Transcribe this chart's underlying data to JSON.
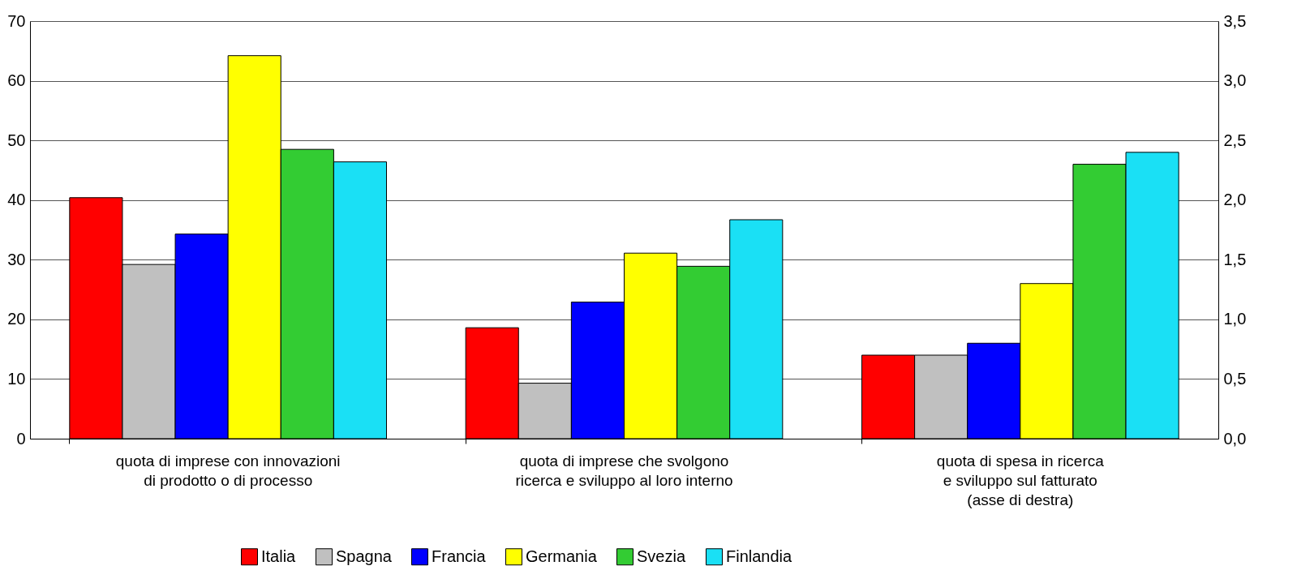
{
  "chart_data": {
    "type": "bar",
    "categories": [
      "quota di imprese con innovazioni\ndi prodotto o di processo",
      "quota di imprese che svolgono\nricerca e sviluppo al loro interno",
      "quota di spesa in ricerca\ne sviluppo sul fatturato\n(asse di destra)"
    ],
    "series": [
      {
        "name": "Italia",
        "color": "#ff0000",
        "values": [
          40.4,
          18.6,
          null
        ]
      },
      {
        "name": "Spagna",
        "color": "#c0c0c0",
        "values": [
          29.2,
          9.3,
          null
        ]
      },
      {
        "name": "Francia",
        "color": "#0000ff",
        "values": [
          34.3,
          22.9,
          null
        ]
      },
      {
        "name": "Germania",
        "color": "#ffff00",
        "values": [
          64.2,
          31.1,
          null
        ]
      },
      {
        "name": "Svezia",
        "color": "#33cc33",
        "values": [
          48.5,
          28.9,
          null
        ]
      },
      {
        "name": "Finlandia",
        "color": "#1ae0f5",
        "values": [
          46.4,
          36.7,
          null
        ]
      },
      {
        "axis": "y2",
        "color": "#ff0000",
        "values": [
          null,
          null,
          0.7
        ]
      },
      {
        "axis": "y2",
        "color": "#c0c0c0",
        "values": [
          null,
          null,
          0.7
        ]
      },
      {
        "axis": "y2",
        "color": "#0000ff",
        "values": [
          null,
          null,
          0.8
        ]
      },
      {
        "axis": "y2",
        "color": "#ffff00",
        "values": [
          null,
          null,
          1.3
        ]
      },
      {
        "axis": "y2",
        "color": "#33cc33",
        "values": [
          null,
          null,
          2.3
        ]
      },
      {
        "axis": "y2",
        "color": "#1ae0f5",
        "values": [
          null,
          null,
          2.4
        ]
      }
    ],
    "ylim": [
      0,
      70
    ],
    "yticks": [
      0,
      10,
      20,
      30,
      40,
      50,
      60,
      70
    ],
    "y2lim": [
      0,
      3.5
    ],
    "y2ticks": [
      {
        "value": 0,
        "label": "0,0"
      },
      {
        "value": 0.5,
        "label": "0,5"
      },
      {
        "value": 1,
        "label": "1,0"
      },
      {
        "value": 1.5,
        "label": "1,5"
      },
      {
        "value": 2,
        "label": "2,0"
      },
      {
        "value": 2.5,
        "label": "2,5"
      },
      {
        "value": 3,
        "label": "3,0"
      },
      {
        "value": 3.5,
        "label": "3,5"
      }
    ],
    "grid": "y",
    "legend": "bottom"
  }
}
